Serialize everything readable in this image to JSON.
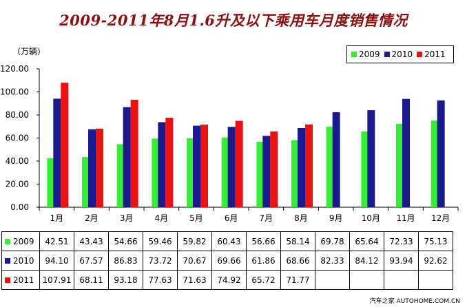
{
  "chart_data": {
    "type": "bar",
    "title": "2009-2011年8月1.6升及以下乘用车月度销售情况",
    "unit_label": "（万辆）",
    "categories": [
      "1月",
      "2月",
      "3月",
      "4月",
      "5月",
      "6月",
      "7月",
      "8月",
      "9月",
      "10月",
      "11月",
      "12月"
    ],
    "series": [
      {
        "name": "2009",
        "color": "#33ee33",
        "values": [
          42.51,
          43.43,
          54.66,
          59.46,
          59.82,
          60.43,
          56.66,
          58.14,
          69.78,
          65.64,
          72.33,
          75.13
        ],
        "labels": [
          "42.51",
          "43.43",
          "54.66",
          "59.46",
          "59.82",
          "60.43",
          "56.66",
          "58.14",
          "69.78",
          "65.64",
          "72.33",
          "75.13"
        ]
      },
      {
        "name": "2010",
        "color": "#1a1a8c",
        "values": [
          94.1,
          67.57,
          86.83,
          73.72,
          70.67,
          69.66,
          61.86,
          68.66,
          82.33,
          84.12,
          93.94,
          92.62
        ],
        "labels": [
          "94.10",
          "67.57",
          "86.83",
          "73.72",
          "70.67",
          "69.66",
          "61.86",
          "68.66",
          "82.33",
          "84.12",
          "93.94",
          "92.62"
        ]
      },
      {
        "name": "2011",
        "color": "#ee1111",
        "values": [
          107.91,
          68.11,
          93.18,
          77.63,
          71.63,
          74.92,
          65.72,
          71.77,
          null,
          null,
          null,
          null
        ],
        "labels": [
          "107.91",
          "68.11",
          "93.18",
          "77.63",
          "71.63",
          "74.92",
          "65.72",
          "71.77",
          "",
          "",
          "",
          ""
        ]
      }
    ],
    "ylim": [
      0,
      120
    ],
    "yticks": [
      "0.00",
      "20.00",
      "40.00",
      "60.00",
      "80.00",
      "100.00",
      "120.00"
    ],
    "grid": false,
    "legend_position": "top-right"
  },
  "watermark": "汽车之家  AUTOHOME.COM.CN"
}
